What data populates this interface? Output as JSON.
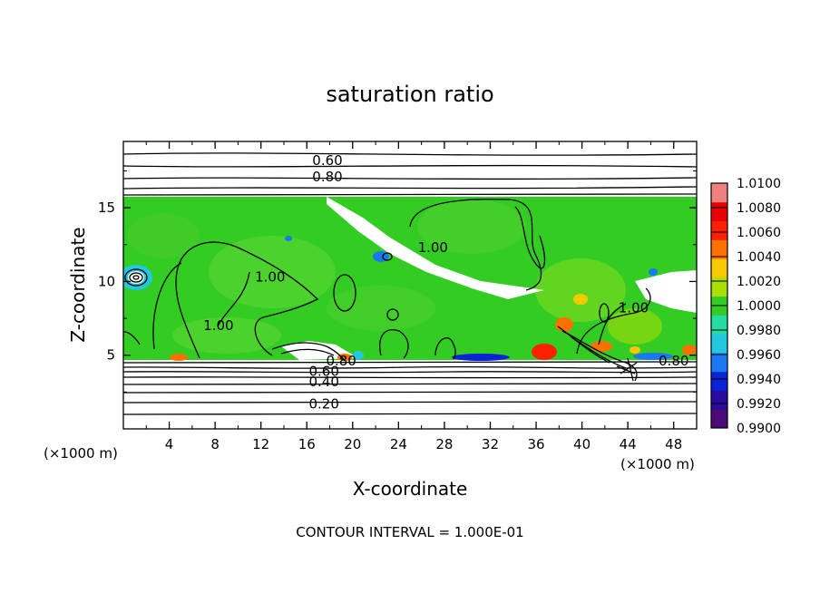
{
  "chart_data": {
    "type": "heatmap",
    "title": "saturation ratio",
    "xlabel": "X-coordinate",
    "ylabel": "Z-coordinate",
    "x_unit": "(×1000 m)",
    "y_unit": "(×1000 m)",
    "xlim": [
      0,
      50
    ],
    "ylim": [
      0,
      19.5
    ],
    "x_ticks": [
      4,
      8,
      12,
      16,
      20,
      24,
      28,
      32,
      36,
      40,
      44,
      48
    ],
    "y_ticks": [
      5,
      10,
      15
    ],
    "footer": "CONTOUR INTERVAL = 1.000E-01",
    "colorbar": {
      "min": 0.99,
      "max": 1.01,
      "levels": [
        "1.0100",
        "1.0080",
        "1.0060",
        "1.0040",
        "1.0020",
        "1.0000",
        "0.9980",
        "0.9960",
        "0.9940",
        "0.9920",
        "0.9900"
      ],
      "colors": [
        "#4b0a78",
        "#2a0aa0",
        "#0a22d8",
        "#1a78f0",
        "#22c8e0",
        "#22dca0",
        "#33cc22",
        "#aae000",
        "#f8c800",
        "#ff7000",
        "#ff2000",
        "#e80000",
        "#f08080"
      ]
    },
    "contour_labels": [
      {
        "label": "0.60",
        "x": 17.8,
        "z": 18.2
      },
      {
        "label": "0.80",
        "x": 17.8,
        "z": 17.1
      },
      {
        "label": "1.00",
        "x": 27.0,
        "z": 12.3
      },
      {
        "label": "1.00",
        "x": 12.8,
        "z": 10.3
      },
      {
        "label": "1.00",
        "x": 8.3,
        "z": 7.0
      },
      {
        "label": "1.00",
        "x": 44.5,
        "z": 8.2
      },
      {
        "label": "0.80",
        "x": 19.0,
        "z": 4.6
      },
      {
        "label": "0.60",
        "x": 17.5,
        "z": 3.9
      },
      {
        "label": "0.40",
        "x": 17.5,
        "z": 3.2
      },
      {
        "label": "0.20",
        "x": 17.5,
        "z": 1.7
      },
      {
        "label": "0.80",
        "x": 48.0,
        "z": 4.6
      }
    ]
  }
}
